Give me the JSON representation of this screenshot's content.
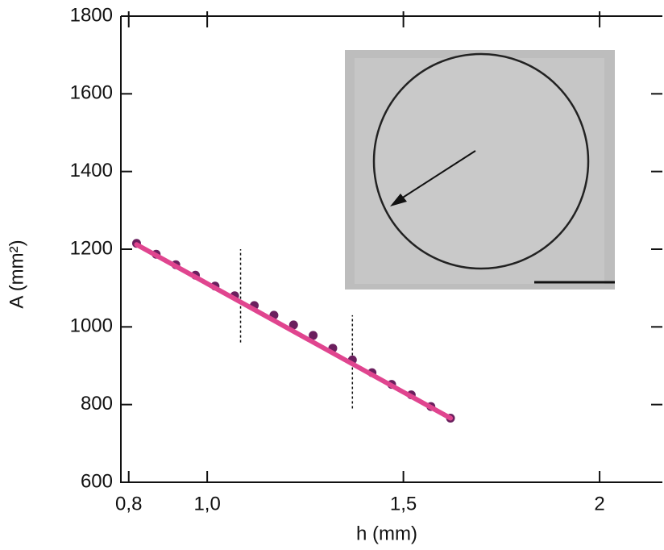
{
  "chart_data": {
    "type": "scatter",
    "x_label": "h (mm)",
    "y_label": "A (mm²)",
    "xlim": [
      0.78,
      2.16
    ],
    "ylim": [
      600,
      1800
    ],
    "xticks": [
      {
        "value": 0.8,
        "label": "0,8"
      },
      {
        "value": 1.0,
        "label": "1,0"
      },
      {
        "value": 1.5,
        "label": "1,5"
      },
      2
    ],
    "yticks": [
      600,
      800,
      1000,
      1200,
      1400,
      1600,
      1800
    ],
    "series": [
      {
        "kind": "points",
        "color": "#6b1f5e",
        "x": [
          0.82,
          0.87,
          0.92,
          0.97,
          1.02,
          1.07,
          1.12,
          1.17,
          1.22,
          1.27,
          1.32,
          1.37,
          1.42,
          1.47,
          1.52,
          1.57,
          1.62
        ],
        "values": [
          1215,
          1187,
          1160,
          1133,
          1105,
          1080,
          1055,
          1030,
          1005,
          978,
          945,
          915,
          882,
          852,
          825,
          795,
          765
        ]
      },
      {
        "kind": "fit",
        "color": "#e0458f",
        "x": [
          0.82,
          1.62
        ],
        "values": [
          1212,
          765
        ]
      }
    ],
    "vlines": [
      {
        "x": 1.085,
        "y": [
          960,
          1200
        ]
      },
      {
        "x": 1.37,
        "y": [
          790,
          1030
        ]
      }
    ]
  }
}
